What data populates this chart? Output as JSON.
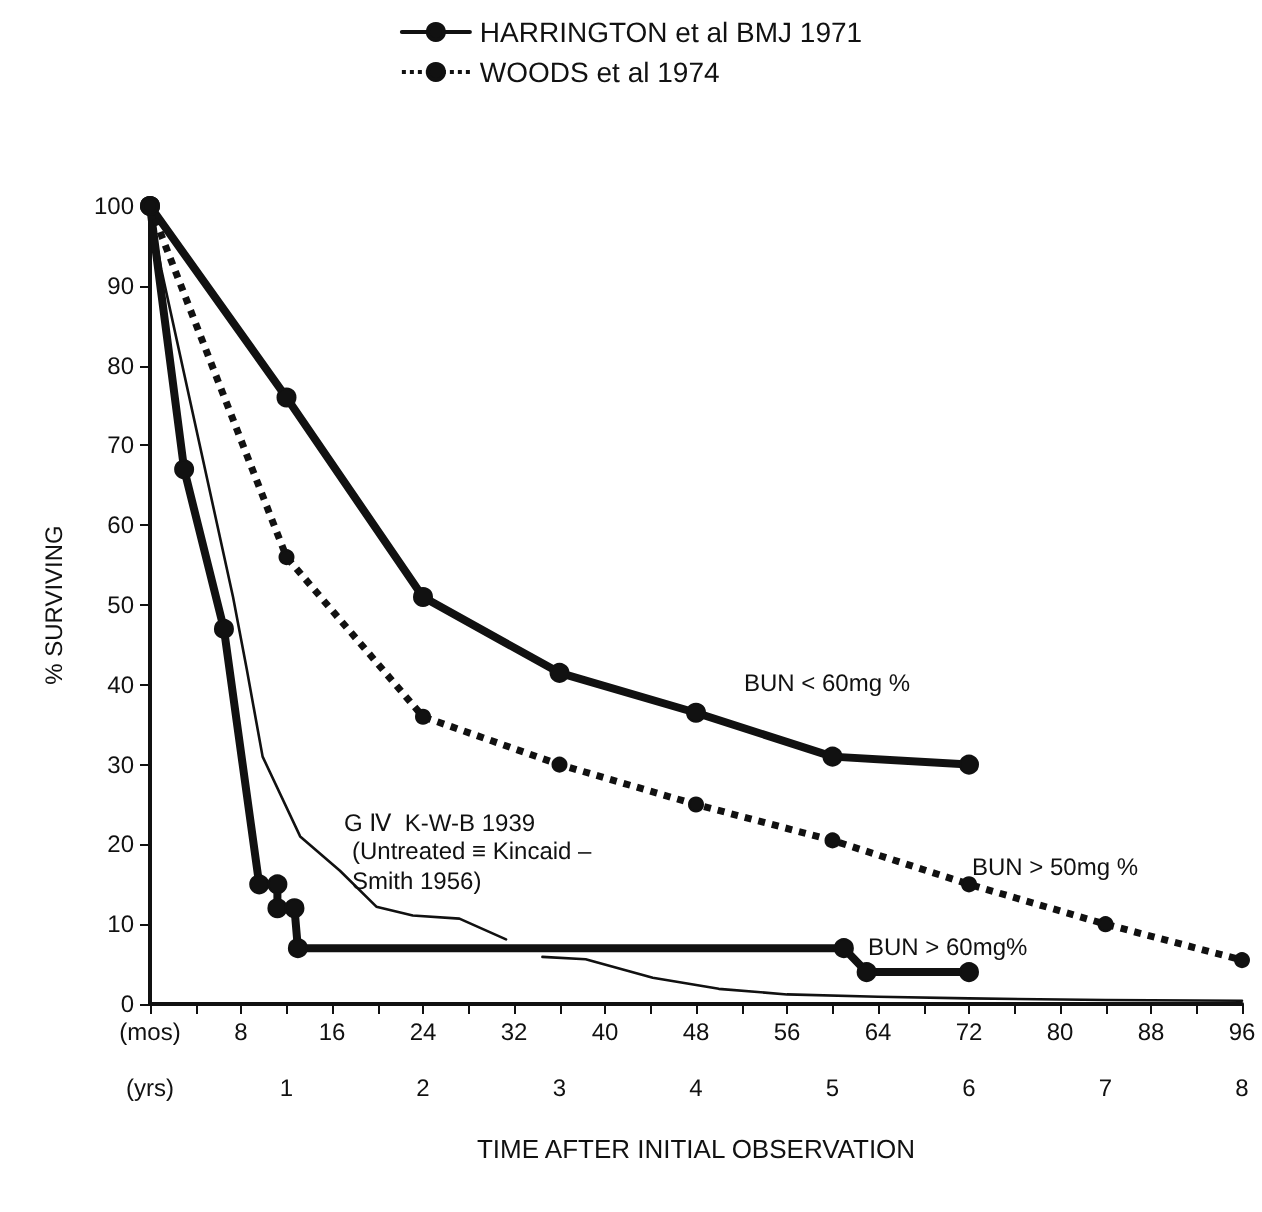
{
  "chart_data": {
    "type": "line",
    "xlabel": "TIME AFTER INITIAL OBSERVATION",
    "ylabel": "% SURVIVING",
    "xlim": [
      0,
      96
    ],
    "xticks": [
      {
        "value": 0,
        "label": "(mos)"
      },
      {
        "value": 4,
        "label": null
      },
      8,
      {
        "value": 12,
        "label": null
      },
      16,
      {
        "value": 20,
        "label": null
      },
      24,
      {
        "value": 28,
        "label": null
      },
      32,
      {
        "value": 36,
        "label": null
      },
      40,
      {
        "value": 44,
        "label": null
      },
      48,
      {
        "value": 52,
        "label": null
      },
      56,
      {
        "value": 60,
        "label": null
      },
      64,
      {
        "value": 68,
        "label": null
      },
      72,
      {
        "value": 76,
        "label": null
      },
      80,
      {
        "value": 84,
        "label": null
      },
      88,
      {
        "value": 92,
        "label": null
      },
      96
    ],
    "x2lim": [
      0,
      8
    ],
    "x2ticks": [
      {
        "value": 0,
        "label": "(yrs)"
      },
      1,
      2,
      3,
      4,
      5,
      6,
      7,
      8
    ],
    "ylim": [
      0,
      100
    ],
    "yticks": [
      0,
      10,
      20,
      30,
      40,
      50,
      60,
      70,
      80,
      90,
      100
    ],
    "grid": false,
    "legend": "top",
    "series": [
      {
        "name": "HARRINGTON et al BMJ 1971",
        "color": "#111111",
        "marker": "circle",
        "line_style": "solid",
        "x": [
          0,
          12,
          24,
          36,
          48,
          60,
          72
        ],
        "values": [
          100,
          76,
          51,
          41.5,
          36.5,
          31,
          30
        ]
      },
      {
        "color": "#111111",
        "marker": "circle",
        "line_style": "solid",
        "x": [
          0,
          3,
          6.5,
          9.6,
          11.2,
          11.2,
          12.7,
          13,
          61,
          63,
          72
        ],
        "values": [
          100,
          67,
          47,
          15,
          15,
          12,
          12,
          7,
          7,
          4,
          4
        ]
      },
      {
        "name": "WOODS et al 1974",
        "color": "#111111",
        "marker": "circle",
        "line_style": "dotted",
        "x": [
          0,
          12,
          24,
          36,
          48,
          60,
          72,
          84,
          96
        ],
        "values": [
          100,
          56,
          36,
          30,
          25,
          20.5,
          15,
          10,
          5.5
        ]
      },
      {
        "color": "#111111",
        "marker": "none",
        "line_style": "solid",
        "x": [
          0,
          1,
          7.3,
          8.5,
          9.9,
          13.2,
          16.7,
          19.9,
          23.1,
          27.2,
          31.3,
          33,
          34.5,
          38.3,
          44.2,
          50,
          56,
          64,
          72,
          84,
          96
        ],
        "values": [
          100,
          92,
          51,
          42,
          31,
          21,
          16.7,
          12.2,
          11.1,
          10.7,
          8.1,
          null,
          5.9,
          5.6,
          3.3,
          1.9,
          1.2,
          0.9,
          0.7,
          0.5,
          0.4
        ]
      }
    ],
    "annotations": [
      "BUN < 60mg %",
      "BUN > 50mg %",
      "BUN > 60mg%",
      "G Ⅳ  K-W-B 1939",
      "(Untreated ≡ Kincaid – Smith 1956)"
    ]
  }
}
